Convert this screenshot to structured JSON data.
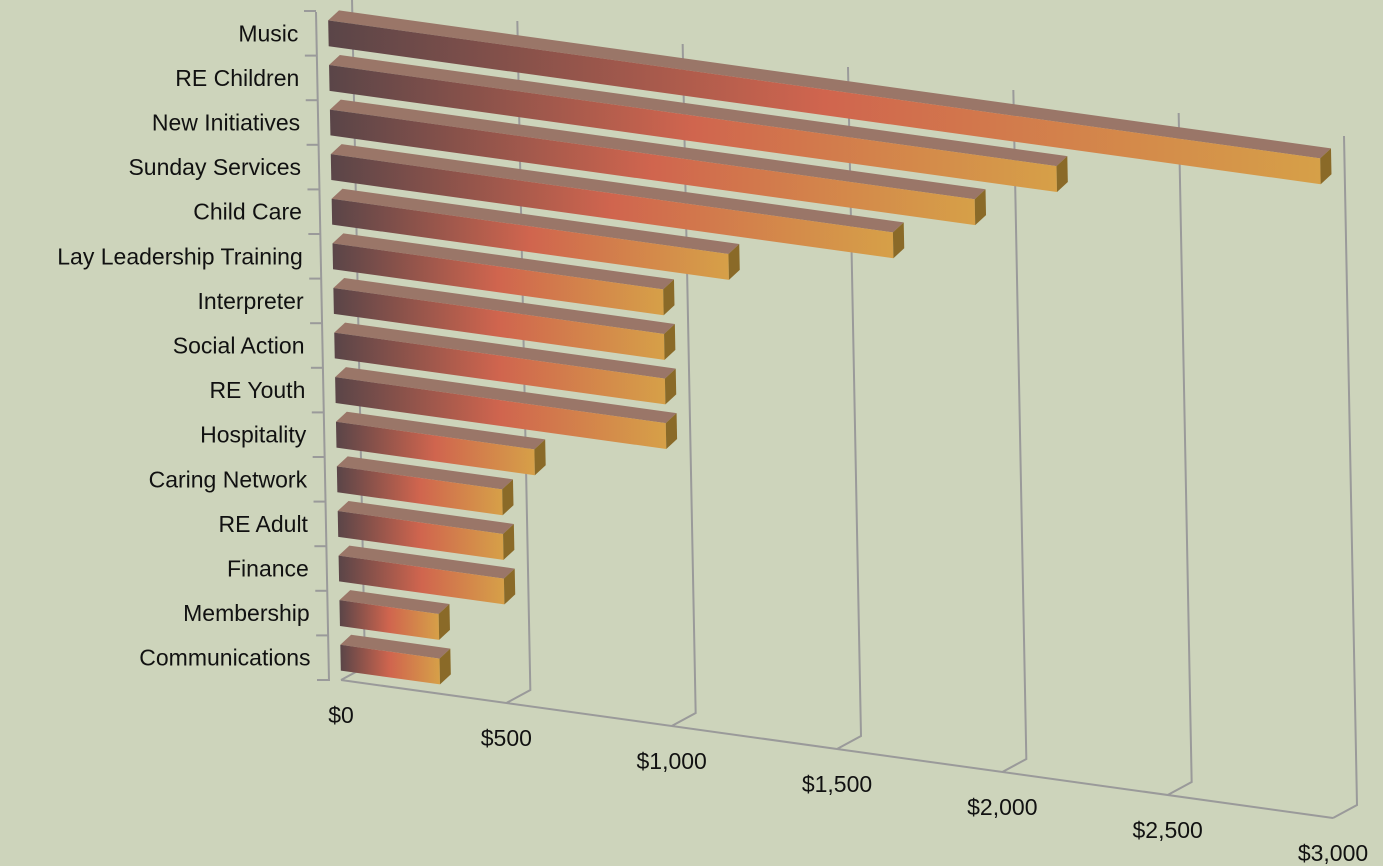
{
  "chart_data": {
    "type": "bar",
    "orientation": "horizontal",
    "three_d": true,
    "categories": [
      "Music",
      "RE Children",
      "New Initiatives",
      "Sunday Services",
      "Child Care",
      "Lay Leadership Training",
      "Interpreter",
      "Social Action",
      "RE Youth",
      "Hospitality",
      "Caring Network",
      "RE Adult",
      "Finance",
      "Membership",
      "Communications"
    ],
    "values": [
      3000,
      2200,
      1950,
      1700,
      1200,
      1000,
      1000,
      1000,
      1000,
      600,
      500,
      500,
      500,
      300,
      300
    ],
    "xlim": [
      0,
      3000
    ],
    "x_ticks": [
      0,
      500,
      1000,
      1500,
      2000,
      2500,
      3000
    ],
    "x_tick_labels": [
      "$0",
      "$500",
      "$1,000",
      "$1,500",
      "$2,000",
      "$2,500",
      "$3,000"
    ],
    "title": "",
    "xlabel": "",
    "ylabel": "",
    "grid": true,
    "legend": "none",
    "colors": {
      "background": "#CDD4BB",
      "bar_start": "#5A4548",
      "bar_mid": "#D0654E",
      "bar_end": "#D6A048",
      "bar_top": "#9A7668",
      "bar_cap": "#8A6A28",
      "gridline": "#9A9A9A"
    }
  }
}
